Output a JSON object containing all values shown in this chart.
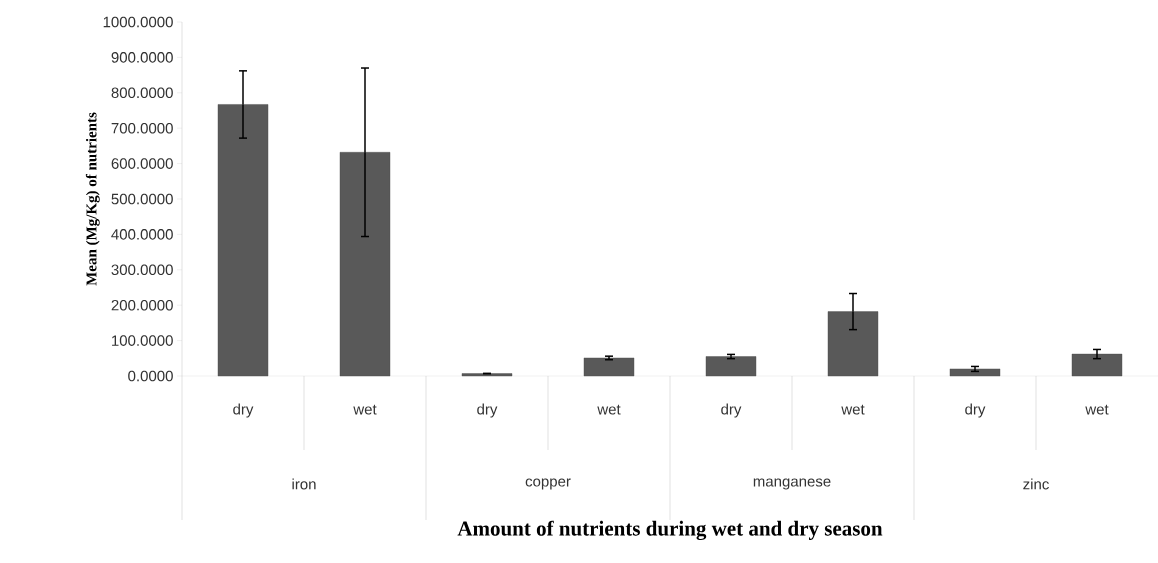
{
  "chart_data": {
    "type": "bar",
    "xlabel": "Amount of nutrients during wet and dry season",
    "ylabel": "Mean (Mg/Kg) of nutrients",
    "categories": [
      "dry",
      "wet",
      "dry",
      "wet",
      "dry",
      "wet",
      "dry",
      "wet"
    ],
    "annotations": [
      "iron",
      "copper",
      "manganese",
      "zinc"
    ],
    "values": [
      767,
      632,
      7,
      51,
      55,
      182,
      20,
      62
    ],
    "errors": [
      95,
      238,
      null,
      5,
      6,
      51,
      7,
      13
    ],
    "color": "#595959",
    "ylim": [
      0,
      1000
    ],
    "yticks": [
      {
        "value": 0,
        "label": "0.0000"
      },
      {
        "value": 100,
        "label": "100.0000"
      },
      {
        "value": 200,
        "label": "200.0000"
      },
      {
        "value": 300,
        "label": "300.0000"
      },
      {
        "value": 400,
        "label": "400.0000"
      },
      {
        "value": 500,
        "label": "500.0000"
      },
      {
        "value": 600,
        "label": "600.0000"
      },
      {
        "value": 700,
        "label": "700.0000"
      },
      {
        "value": 800,
        "label": "800.0000"
      },
      {
        "value": 900,
        "label": "900.0000"
      },
      {
        "value": 1000,
        "label": "1000.0000"
      }
    ]
  }
}
